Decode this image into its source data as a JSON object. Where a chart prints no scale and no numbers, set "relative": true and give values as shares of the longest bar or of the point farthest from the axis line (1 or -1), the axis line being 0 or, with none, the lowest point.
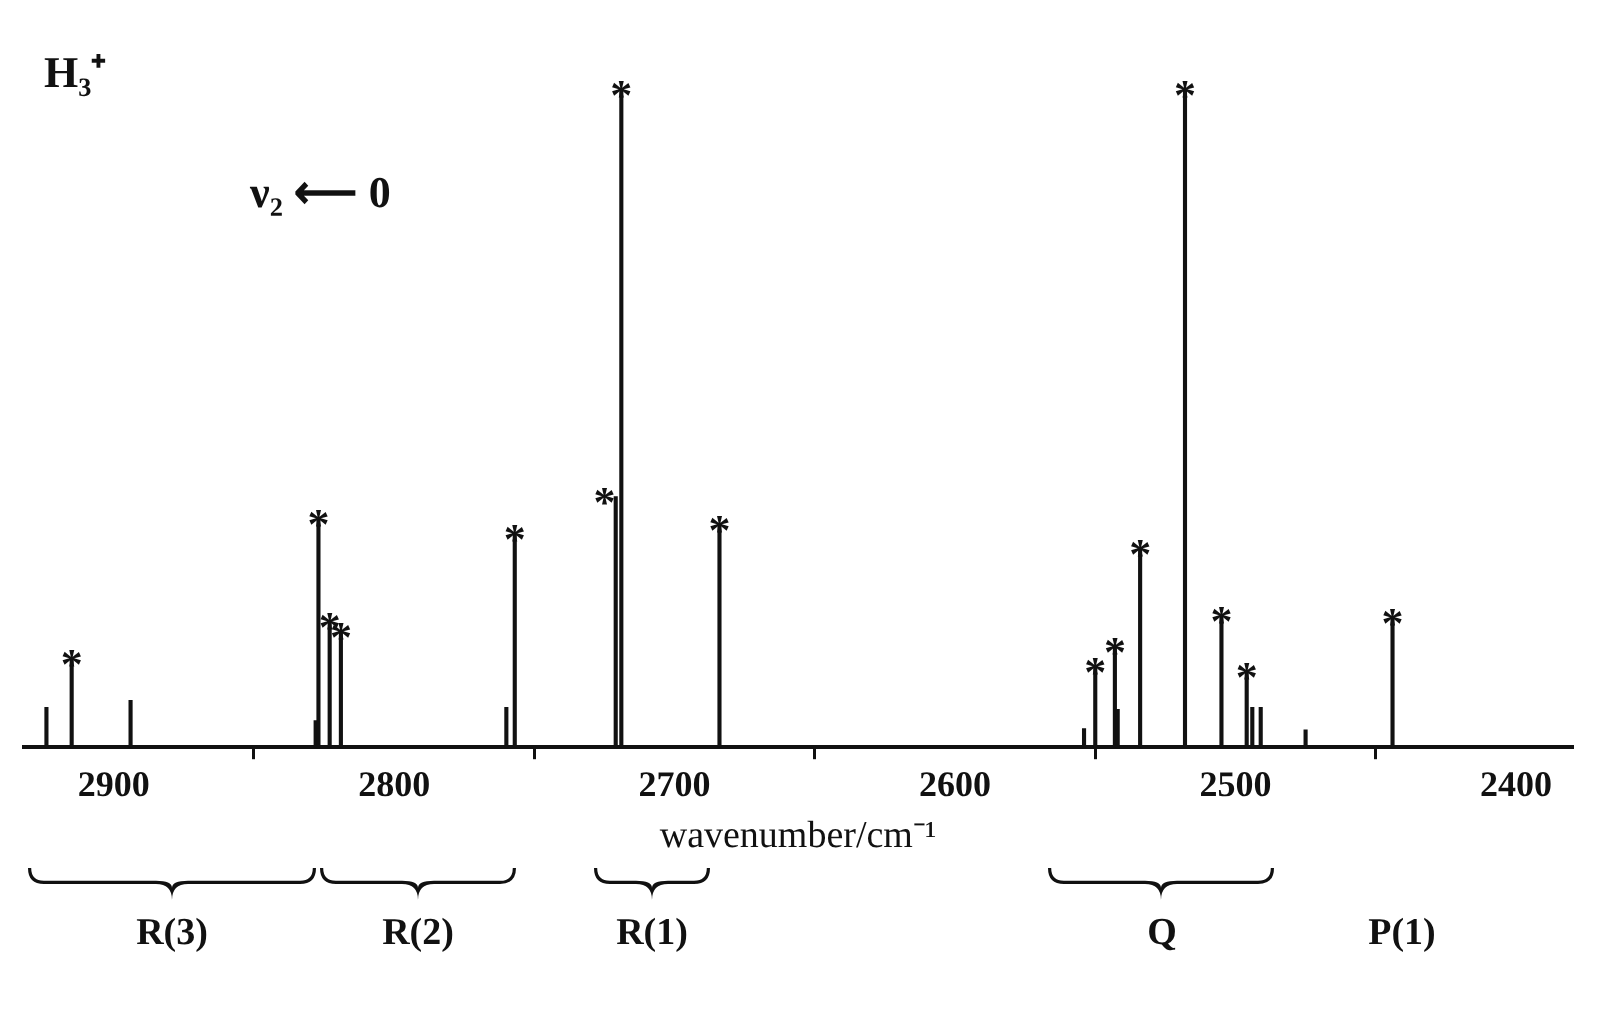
{
  "chart_data": {
    "type": "bar",
    "relative": true,
    "color": "#111111",
    "xlabel": "wavenumber/cm⁻¹",
    "xlim": [
      2932,
      2380
    ],
    "xticks": [
      2900,
      2800,
      2700,
      2600,
      2500,
      2400
    ],
    "grid": false,
    "legend": false,
    "x": [
      2924,
      2915,
      2894,
      2828,
      2827,
      2823,
      2819,
      2760,
      2757,
      2721,
      2719,
      2684,
      2554,
      2550,
      2543,
      2542,
      2534,
      2518,
      2505,
      2496,
      2494,
      2491,
      2475,
      2444
    ],
    "values": [
      0.06,
      0.134,
      0.071,
      0.04,
      0.347,
      0.19,
      0.176,
      0.06,
      0.324,
      0.381,
      1,
      0.338,
      0.028,
      0.122,
      0.153,
      0.057,
      0.301,
      1,
      0.199,
      0.114,
      0.06,
      0.06,
      0.026,
      0.196
    ],
    "annotations": [
      "H₃⁺",
      "ν₂ ⟵ 0",
      {
        "text": "*",
        "x": 2915,
        "y": 0.134
      },
      {
        "text": "*",
        "x": 2827,
        "y": 0.347
      },
      {
        "text": "*",
        "x": 2823,
        "y": 0.19
      },
      {
        "text": "*",
        "x": 2819,
        "y": 0.176
      },
      {
        "text": "*",
        "x": 2757,
        "y": 0.324
      },
      {
        "text": "*",
        "x": 2725,
        "y": 0.381
      },
      {
        "text": "*",
        "x": 2719,
        "y": 1
      },
      {
        "text": "*",
        "x": 2684,
        "y": 0.338
      },
      {
        "text": "*",
        "x": 2550,
        "y": 0.122
      },
      {
        "text": "*",
        "x": 2543,
        "y": 0.153
      },
      {
        "text": "*",
        "x": 2534,
        "y": 0.301
      },
      {
        "text": "*",
        "x": 2518,
        "y": 1
      },
      {
        "text": "*",
        "x": 2505,
        "y": 0.199
      },
      {
        "text": "*",
        "x": 2496,
        "y": 0.114
      },
      {
        "text": "*",
        "x": 2444,
        "y": 0.196
      },
      "R(3)",
      "R(2)",
      "R(1)",
      "Q",
      "P(1)"
    ]
  }
}
